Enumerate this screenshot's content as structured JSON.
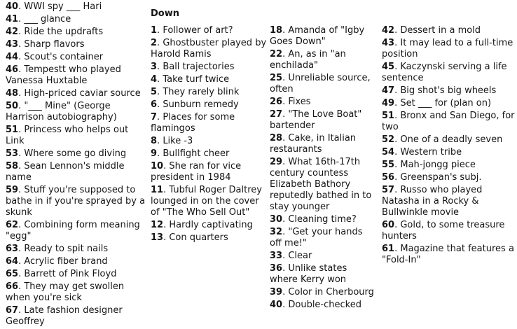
{
  "page": {
    "background_color": "#ffffff",
    "text_color": "#151515"
  },
  "clues": {
    "across_continued": [
      {
        "n": "40",
        "t": "WWI spy ___ Hari"
      },
      {
        "n": "41",
        "t": "___ glance"
      },
      {
        "n": "42",
        "t": "Ride the updrafts"
      },
      {
        "n": "43",
        "t": "Sharp flavors"
      },
      {
        "n": "44",
        "t": "Scout's container"
      },
      {
        "n": "46",
        "t": "Tempestt who played Vanessa Huxtable"
      },
      {
        "n": "48",
        "t": "High-priced caviar source"
      },
      {
        "n": "50",
        "t": "\"___ Mine\" (George Harrison autobiography)"
      },
      {
        "n": "51",
        "t": "Princess who helps out Link"
      },
      {
        "n": "53",
        "t": "Where some go diving"
      },
      {
        "n": "58",
        "t": "Sean Lennon's middle name"
      },
      {
        "n": "59",
        "t": "Stuff you're supposed to bathe in if you're sprayed by a skunk"
      },
      {
        "n": "62",
        "t": "Combining form meaning \"egg\""
      },
      {
        "n": "63",
        "t": "Ready to spit nails"
      },
      {
        "n": "64",
        "t": "Acrylic fiber brand"
      },
      {
        "n": "65",
        "t": "Barrett of Pink Floyd"
      },
      {
        "n": "66",
        "t": "They may get swollen when you're sick"
      },
      {
        "n": "67",
        "t": "Late fashion designer Geoffrey"
      }
    ],
    "down": {
      "heading": "Down",
      "column_1": [
        {
          "n": "1",
          "t": "Follower of art?"
        },
        {
          "n": "2",
          "t": "Ghostbuster played by Harold Ramis"
        },
        {
          "n": "3",
          "t": "Ball trajectories"
        },
        {
          "n": "4",
          "t": "Take turf twice"
        },
        {
          "n": "5",
          "t": "They rarely blink"
        },
        {
          "n": "6",
          "t": "Sunburn remedy"
        },
        {
          "n": "7",
          "t": "Places for some flamingos"
        },
        {
          "n": "8",
          "t": "Like -3"
        },
        {
          "n": "9",
          "t": "Bullfight cheer"
        },
        {
          "n": "10",
          "t": "She ran for vice president in 1984"
        },
        {
          "n": "11",
          "t": "Tubful Roger Daltrey lounged in on the cover of \"The Who Sell Out\""
        },
        {
          "n": "12",
          "t": "Hardly captivating"
        },
        {
          "n": "13",
          "t": "Con quarters"
        }
      ],
      "column_2": [
        {
          "n": "18",
          "t": "Amanda of \"Igby Goes Down\""
        },
        {
          "n": "22",
          "t": "An, as in \"an enchilada\""
        },
        {
          "n": "25",
          "t": "Unreliable source, often"
        },
        {
          "n": "26",
          "t": "Fixes"
        },
        {
          "n": "27",
          "t": "\"The Love Boat\" bartender"
        },
        {
          "n": "28",
          "t": "Cake, in Italian restaurants"
        },
        {
          "n": "29",
          "t": "What 16th-17th century countess Elizabeth Bathory reputedly bathed in to stay younger"
        },
        {
          "n": "30",
          "t": "Cleaning time?"
        },
        {
          "n": "32",
          "t": "\"Get your hands off me!\""
        },
        {
          "n": "33",
          "t": "Clear"
        },
        {
          "n": "36",
          "t": "Unlike states where Kerry won"
        },
        {
          "n": "39",
          "t": "Color in Cherbourg"
        },
        {
          "n": "40",
          "t": "Double-checked"
        }
      ],
      "column_3": [
        {
          "n": "42",
          "t": "Dessert in a mold"
        },
        {
          "n": "43",
          "t": "It may lead to a full-time position"
        },
        {
          "n": "45",
          "t": "Kaczynski serving a life sentence"
        },
        {
          "n": "47",
          "t": "Big shot's big wheels"
        },
        {
          "n": "49",
          "t": "Set ___ for (plan on)"
        },
        {
          "n": "51",
          "t": "Bronx and San Diego, for two"
        },
        {
          "n": "52",
          "t": "One of a deadly seven"
        },
        {
          "n": "54",
          "t": "Western tribe"
        },
        {
          "n": "55",
          "t": "Mah-jongg piece"
        },
        {
          "n": "56",
          "t": "Greenspan's subj."
        },
        {
          "n": "57",
          "t": "Russo who played Natasha in a Rocky & Bullwinkle movie"
        },
        {
          "n": "60",
          "t": "Gold, to some treasure hunters"
        },
        {
          "n": "61",
          "t": "Magazine that features a \"Fold-In\""
        }
      ]
    }
  }
}
